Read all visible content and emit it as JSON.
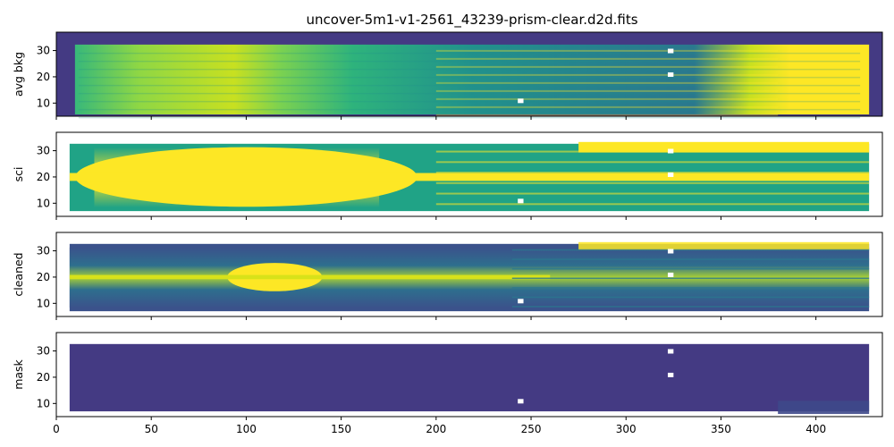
{
  "title": "uncover-5m1-v1-2561_43239-prism-clear.d2d.fits",
  "chart_data": {
    "type": "heatmap",
    "title": "uncover-5m1-v1-2561_43239-prism-clear.d2d.fits",
    "shared_x": {
      "lim": [
        0,
        435
      ],
      "ticks": [
        0,
        50,
        100,
        150,
        200,
        250,
        300,
        350,
        400
      ],
      "tick_labels": [
        "0",
        "50",
        "100",
        "150",
        "200",
        "250",
        "300",
        "350",
        "400"
      ]
    },
    "y_ticks": [
      10,
      20,
      30
    ],
    "y_tick_labels": [
      "10",
      "20",
      "30"
    ],
    "ylim": [
      5,
      37
    ],
    "colormap": "viridis",
    "background_color": "#443a83",
    "panels": [
      {
        "ylabel": "avg bkg",
        "x_range": [
          7,
          428
        ],
        "y_range": [
          5,
          35
        ],
        "trace_center_y": 20,
        "bright_regions_x": [
          [
            55,
            95
          ],
          [
            360,
            428
          ]
        ]
      },
      {
        "ylabel": "sci",
        "x_range": [
          7,
          428
        ],
        "y_range": [
          7,
          34
        ],
        "trace_center_y": 20,
        "bright_regions_x": [
          [
            30,
            165
          ],
          [
            275,
            380
          ]
        ]
      },
      {
        "ylabel": "cleaned",
        "x_range": [
          7,
          428
        ],
        "y_range": [
          7,
          34
        ],
        "trace_center_y": 20,
        "bright_regions_x": [
          [
            95,
            135
          ]
        ]
      },
      {
        "ylabel": "mask",
        "x_range": [
          7,
          428
        ],
        "y_range": [
          7,
          34
        ],
        "trace_center_y": 20,
        "bright_regions_x": []
      }
    ]
  }
}
